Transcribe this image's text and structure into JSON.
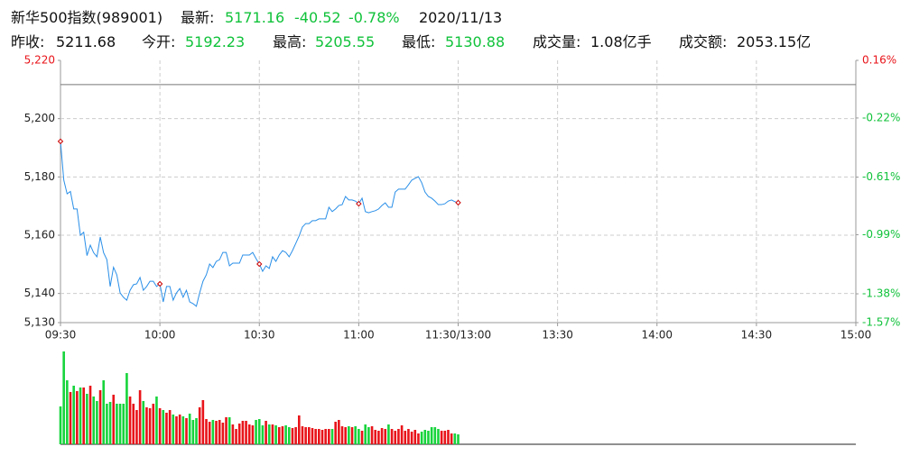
{
  "header": {
    "name": "新华500指数(989001)",
    "latest_label": "最新:",
    "latest": "5171.16",
    "change": "-40.52",
    "change_pct": "-0.78%",
    "date": "2020/11/13",
    "prev_close_label": "昨收:",
    "prev_close": "5211.68",
    "open_label": "今开:",
    "open": "5192.23",
    "high_label": "最高:",
    "high": "5205.55",
    "low_label": "最低:",
    "low": "5130.88",
    "volume_label": "成交量:",
    "volume": "1.08亿手",
    "amount_label": "成交额:",
    "amount": "2053.15亿"
  },
  "chart_data": {
    "type": "line",
    "x": [
      0,
      1,
      2,
      3,
      4,
      5,
      6,
      7,
      8,
      9,
      10,
      11,
      12,
      13,
      14,
      15,
      16,
      17,
      18,
      19,
      20,
      21,
      22,
      23,
      24,
      25,
      26,
      27,
      28,
      29,
      30,
      31,
      32,
      33,
      34,
      35,
      36,
      37,
      38,
      39,
      40,
      41,
      42,
      43,
      44,
      45,
      46,
      47,
      48,
      49,
      50,
      51,
      52,
      53,
      54,
      55,
      56,
      57,
      58,
      59,
      60,
      61,
      62,
      63,
      64,
      65,
      66,
      67,
      68,
      69,
      70,
      71,
      72,
      73,
      74,
      75,
      76,
      77,
      78,
      79,
      80,
      81,
      82,
      83,
      84,
      85,
      86,
      87,
      88,
      89,
      90,
      91,
      92,
      93,
      94,
      95,
      96,
      97,
      98,
      99,
      100,
      101,
      102,
      103,
      104,
      105,
      106,
      107,
      108,
      109,
      110,
      111,
      112,
      113,
      114,
      115,
      116,
      117,
      118,
      119,
      120
    ],
    "series": [
      {
        "color": "#2a8fe8",
        "values": [
          5192.2,
          5178.9,
          5174.2,
          5175,
          5169,
          5169,
          5160,
          5161,
          5153,
          5156.6,
          5154,
          5152.6,
          5159.4,
          5154,
          5151.6,
          5142.4,
          5149,
          5146.4,
          5140.2,
          5138.7,
          5137.7,
          5141.1,
          5143,
          5143.3,
          5145.5,
          5141.1,
          5142.4,
          5144.2,
          5144.2,
          5142.4,
          5143.3,
          5137.1,
          5142.4,
          5142.4,
          5137.7,
          5140.2,
          5141.7,
          5138.7,
          5141.1,
          5137.1,
          5136.5,
          5135.6,
          5140.2,
          5144.2,
          5146.4,
          5150.1,
          5148.9,
          5151,
          5151.6,
          5154.1,
          5154.1,
          5149.5,
          5150.4,
          5150.4,
          5150.4,
          5153.2,
          5153.2,
          5153.2,
          5154.1,
          5152,
          5150.1,
          5147.6,
          5149.5,
          5148.6,
          5152.6,
          5151,
          5153.2,
          5154.7,
          5154.1,
          5152.6,
          5154.7,
          5157.2,
          5159.7,
          5162.8,
          5164,
          5164,
          5165,
          5165,
          5165.6,
          5165.6,
          5165.6,
          5169.6,
          5168.1,
          5169,
          5170.2,
          5170.5,
          5173.3,
          5172.1,
          5172.1,
          5171.7,
          5170.8,
          5172.7,
          5168.1,
          5167.7,
          5168.1,
          5168.4,
          5169,
          5170.2,
          5171.1,
          5169.6,
          5169.6,
          5174.8,
          5175.8,
          5175.8,
          5175.8,
          5177.3,
          5178.9,
          5179.5,
          5180.1,
          5178,
          5174.8,
          5173.3,
          5172.7,
          5171.7,
          5170.5,
          5170.5,
          5170.8,
          5171.7,
          5172.1,
          5171.5,
          5171.16
        ]
      }
    ],
    "baseline": 5211.68,
    "baseline_color": "#777777",
    "volume": {
      "up_color": "#e8141a",
      "down_color": "#17d43c",
      "values": [
        42,
        103,
        71,
        58,
        65,
        59,
        63,
        63,
        56,
        65,
        53,
        48,
        60,
        71,
        45,
        47,
        55,
        45,
        45,
        45,
        79,
        53,
        45,
        38,
        60,
        48,
        41,
        40,
        45,
        53,
        40,
        38,
        35,
        38,
        33,
        31,
        33,
        31,
        29,
        34,
        27,
        29,
        41,
        49,
        28,
        25,
        27,
        26,
        27,
        24,
        30,
        30,
        22,
        17,
        23,
        26,
        26,
        22,
        21,
        27,
        28,
        21,
        26,
        22,
        22,
        21,
        19,
        20,
        21,
        19,
        18,
        19,
        32,
        20,
        19,
        19,
        18,
        17,
        17,
        16,
        17,
        17,
        17,
        25,
        27,
        20,
        19,
        20,
        19,
        20,
        17,
        15,
        22,
        19,
        20,
        16,
        15,
        18,
        17,
        22,
        17,
        15,
        17,
        21,
        15,
        17,
        14,
        16,
        12,
        14,
        16,
        15,
        19,
        19,
        17,
        15,
        15,
        16,
        12,
        12,
        11
      ]
    },
    "xlim": [
      0,
      240
    ],
    "xticks": [
      {
        "value": 0,
        "label": "09:30"
      },
      {
        "value": 30,
        "label": "10:00"
      },
      {
        "value": 60,
        "label": "10:30"
      },
      {
        "value": 90,
        "label": "11:00"
      },
      {
        "value": 120,
        "label": "11:30/13:00"
      },
      {
        "value": 150,
        "label": "13:30"
      },
      {
        "value": 180,
        "label": "14:00"
      },
      {
        "value": 210,
        "label": "14:30"
      },
      {
        "value": 240,
        "label": "15:00"
      }
    ],
    "ylim": [
      5130,
      5220
    ],
    "yticks": [
      {
        "value": 5130,
        "label": "5,130"
      },
      {
        "value": 5140,
        "label": "5,140"
      },
      {
        "value": 5160,
        "label": "5,160"
      },
      {
        "value": 5180,
        "label": "5,180"
      },
      {
        "value": 5200,
        "label": "5,200"
      },
      {
        "value": 5220,
        "label": "5,220"
      }
    ],
    "y2lim": [
      -1.57,
      0.16
    ],
    "y2ticks": [
      {
        "value": -1.57,
        "label": "-1.57%"
      },
      {
        "value": -1.38,
        "label": "-1.38%"
      },
      {
        "value": -0.99,
        "label": "-0.99%"
      },
      {
        "value": -0.61,
        "label": "-0.61%"
      },
      {
        "value": -0.22,
        "label": "-0.22%"
      },
      {
        "value": 0.16,
        "label": "0.16%"
      }
    ],
    "grid": true,
    "marker_every": 30
  }
}
